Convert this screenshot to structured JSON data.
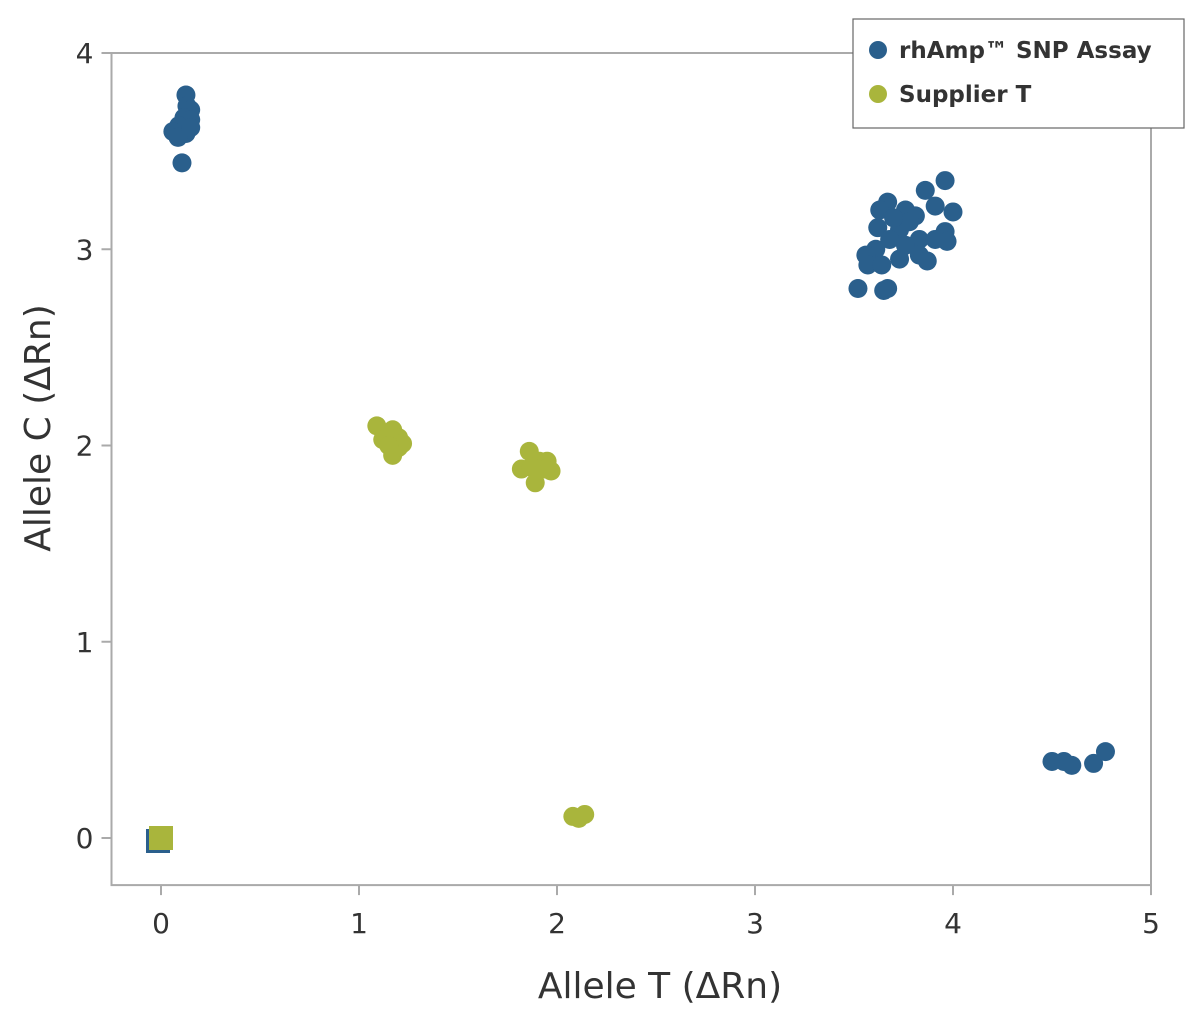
{
  "chart_data": {
    "type": "scatter",
    "title": "",
    "xlabel": "Allele T (ΔRn)",
    "ylabel": "Allele C (ΔRn)",
    "xlim": [
      -0.25,
      5
    ],
    "ylim": [
      -0.24,
      4
    ],
    "xticks": [
      0,
      1,
      2,
      3,
      4,
      5
    ],
    "yticks": [
      0,
      1,
      2,
      3,
      4
    ],
    "grid": false,
    "legend_position": "top-right",
    "series": [
      {
        "name": "rhAmp™ SNP Assay",
        "color": "#2a5f8c",
        "control": [
          0,
          0
        ],
        "points": [
          [
            0.126,
            3.786
          ],
          [
            0.131,
            3.73
          ],
          [
            0.15,
            3.71
          ],
          [
            0.116,
            3.67
          ],
          [
            0.15,
            3.66
          ],
          [
            0.09,
            3.63
          ],
          [
            0.06,
            3.6
          ],
          [
            0.126,
            3.59
          ],
          [
            0.086,
            3.57
          ],
          [
            0.15,
            3.62
          ],
          [
            0.106,
            3.44
          ],
          [
            3.96,
            3.35
          ],
          [
            3.86,
            3.3
          ],
          [
            4.0,
            3.19
          ],
          [
            3.67,
            3.24
          ],
          [
            3.63,
            3.2
          ],
          [
            3.76,
            3.2
          ],
          [
            3.91,
            3.22
          ],
          [
            3.81,
            3.17
          ],
          [
            3.62,
            3.11
          ],
          [
            3.73,
            3.1
          ],
          [
            3.96,
            3.09
          ],
          [
            3.97,
            3.04
          ],
          [
            3.83,
            3.05
          ],
          [
            3.91,
            3.05
          ],
          [
            3.68,
            3.05
          ],
          [
            3.61,
            3.0
          ],
          [
            3.76,
            3.02
          ],
          [
            3.56,
            2.97
          ],
          [
            3.57,
            2.92
          ],
          [
            3.64,
            2.92
          ],
          [
            3.73,
            2.95
          ],
          [
            3.83,
            2.97
          ],
          [
            3.87,
            2.94
          ],
          [
            3.52,
            2.8
          ],
          [
            3.65,
            2.79
          ],
          [
            3.67,
            2.8
          ],
          [
            3.78,
            3.14
          ],
          [
            3.7,
            3.16
          ],
          [
            4.5,
            0.39
          ],
          [
            4.56,
            0.39
          ],
          [
            4.6,
            0.37
          ],
          [
            4.71,
            0.38
          ],
          [
            4.77,
            0.44
          ]
        ]
      },
      {
        "name": "Supplier T",
        "color": "#a9b53c",
        "control": [
          0,
          0
        ],
        "points": [
          [
            1.09,
            2.1
          ],
          [
            1.12,
            2.03
          ],
          [
            1.17,
            2.08
          ],
          [
            1.2,
            2.04
          ],
          [
            1.22,
            2.01
          ],
          [
            1.17,
            1.95
          ],
          [
            1.2,
            1.99
          ],
          [
            1.15,
            2.0
          ],
          [
            1.86,
            1.97
          ],
          [
            1.82,
            1.88
          ],
          [
            1.89,
            1.81
          ],
          [
            1.91,
            1.92
          ],
          [
            1.95,
            1.92
          ],
          [
            1.97,
            1.87
          ],
          [
            1.94,
            1.88
          ],
          [
            1.87,
            1.89
          ],
          [
            2.08,
            0.11
          ],
          [
            2.11,
            0.1
          ],
          [
            2.14,
            0.12
          ]
        ]
      }
    ]
  }
}
